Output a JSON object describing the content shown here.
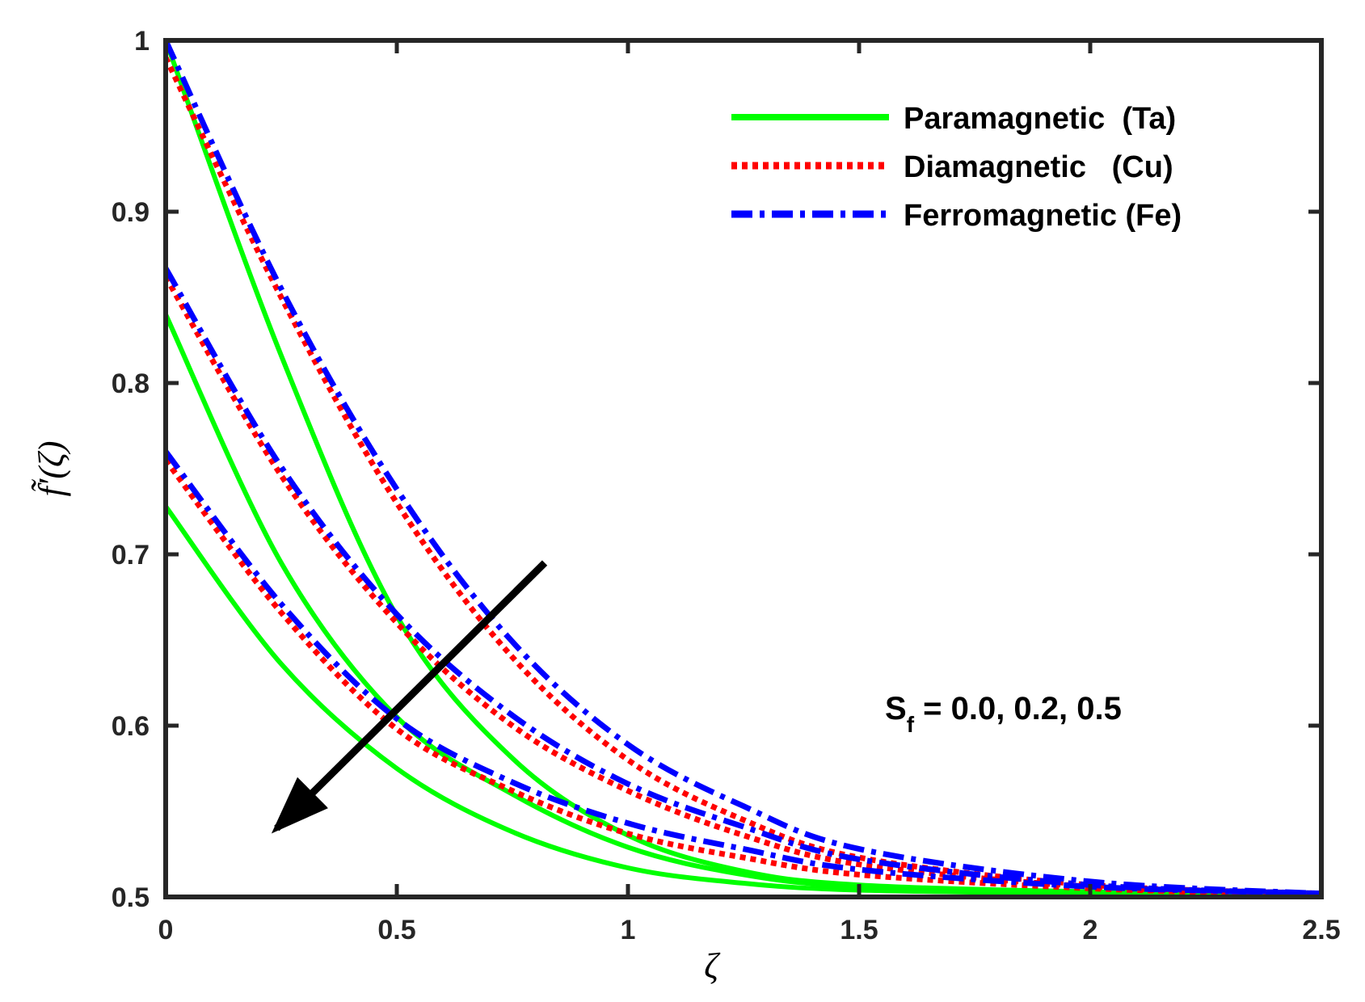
{
  "chart_data": {
    "type": "line",
    "xlabel": "ζ",
    "ylabel": "f̃′(ζ)",
    "xlim": [
      0,
      2.5
    ],
    "ylim": [
      0.5,
      1
    ],
    "xticks": [
      "0",
      "0.5",
      "1",
      "1.5",
      "2",
      "2.5"
    ],
    "yticks": [
      "0.5",
      "0.6",
      "0.7",
      "0.8",
      "0.9",
      "1"
    ],
    "grid": false,
    "legend_position": "top-right",
    "colors": {
      "Paramagnetic": "#00ff00",
      "Diamagnetic": "#ff0000",
      "Ferromagnetic": "#0000ff",
      "arrow": "#000000"
    },
    "legend": [
      {
        "label": "Paramagnetic  (Ta)",
        "color": "#00ff00",
        "style": "solid"
      },
      {
        "label": "Diamagnetic   (Cu)",
        "color": "#ff0000",
        "style": "dotted"
      },
      {
        "label": "Ferromagnetic (Fe)",
        "color": "#0000ff",
        "style": "dashdot"
      }
    ],
    "annotation": {
      "base": "S",
      "subscript": "f",
      "text": " = 0.0, 0.2, 0.5"
    },
    "arrow": {
      "from": [
        0.82,
        0.695
      ],
      "to": [
        0.24,
        0.54
      ]
    },
    "series": [
      {
        "group": "Paramagnetic",
        "Sf": 0.0,
        "x": [
          0,
          0.25,
          0.5,
          0.75,
          1.0,
          1.25,
          1.5,
          2.0,
          2.5
        ],
        "y": [
          1.0,
          0.816,
          0.664,
          0.581,
          0.536,
          0.515,
          0.507,
          0.503,
          0.502
        ]
      },
      {
        "group": "Paramagnetic",
        "Sf": 0.2,
        "x": [
          0,
          0.25,
          0.5,
          0.75,
          1.0,
          1.25,
          1.5,
          2.0,
          2.5
        ],
        "y": [
          0.84,
          0.695,
          0.605,
          0.56,
          0.529,
          0.513,
          0.506,
          0.502,
          0.501
        ]
      },
      {
        "group": "Paramagnetic",
        "Sf": 0.5,
        "x": [
          0,
          0.25,
          0.5,
          0.75,
          1.0,
          1.25,
          1.5,
          2.0,
          2.5
        ],
        "y": [
          0.728,
          0.636,
          0.575,
          0.538,
          0.517,
          0.508,
          0.504,
          0.502,
          0.501
        ]
      },
      {
        "group": "Diamagnetic",
        "Sf": 0.0,
        "x": [
          0,
          0.25,
          0.5,
          0.75,
          1.0,
          1.25,
          1.5,
          2.0,
          2.5
        ],
        "y": [
          0.99,
          0.85,
          0.73,
          0.64,
          0.58,
          0.545,
          0.523,
          0.507,
          0.502
        ]
      },
      {
        "group": "Diamagnetic",
        "Sf": 0.2,
        "x": [
          0,
          0.25,
          0.5,
          0.75,
          1.0,
          1.25,
          1.5,
          2.0,
          2.5
        ],
        "y": [
          0.862,
          0.746,
          0.66,
          0.6,
          0.562,
          0.536,
          0.519,
          0.506,
          0.502
        ]
      },
      {
        "group": "Diamagnetic",
        "Sf": 0.5,
        "x": [
          0,
          0.25,
          0.5,
          0.75,
          1.0,
          1.25,
          1.5,
          2.0,
          2.5
        ],
        "y": [
          0.755,
          0.666,
          0.598,
          0.562,
          0.537,
          0.523,
          0.513,
          0.505,
          0.501
        ]
      },
      {
        "group": "Ferromagnetic",
        "Sf": 0.0,
        "x": [
          0,
          0.25,
          0.5,
          0.75,
          1.0,
          1.25,
          1.5,
          2.0,
          2.5
        ],
        "y": [
          1.0,
          0.855,
          0.738,
          0.649,
          0.589,
          0.553,
          0.528,
          0.509,
          0.502
        ]
      },
      {
        "group": "Ferromagnetic",
        "Sf": 0.2,
        "x": [
          0,
          0.25,
          0.5,
          0.75,
          1.0,
          1.25,
          1.5,
          2.0,
          2.5
        ],
        "y": [
          0.867,
          0.751,
          0.665,
          0.606,
          0.566,
          0.541,
          0.522,
          0.507,
          0.502
        ]
      },
      {
        "group": "Ferromagnetic",
        "Sf": 0.5,
        "x": [
          0,
          0.25,
          0.5,
          0.75,
          1.0,
          1.25,
          1.5,
          2.0,
          2.5
        ],
        "y": [
          0.76,
          0.671,
          0.604,
          0.567,
          0.543,
          0.528,
          0.516,
          0.506,
          0.502
        ]
      }
    ]
  }
}
